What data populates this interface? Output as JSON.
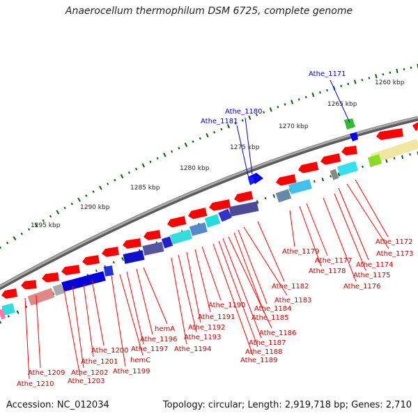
{
  "title": "Anaerocellum thermophilum DSM 6725, complete genome",
  "footer": {
    "accession": "Accession: NC_012034",
    "summary": "Topology: circular; Length: 2,919,718 bp; Genes: 2,710"
  },
  "ticks": [
    {
      "label": "1260 kbp"
    },
    {
      "label": "1265 kbp"
    },
    {
      "label": "1270 kbp"
    },
    {
      "label": "1275 kbp"
    },
    {
      "label": "1280 kbp"
    },
    {
      "label": "1285 kbp"
    },
    {
      "label": "1290 kbp"
    },
    {
      "label": "1295 kbp"
    }
  ],
  "genes_plus": [
    {
      "label": "Athe_1171",
      "color": "#0000cc"
    },
    {
      "label": "Athe_1180",
      "color": "#0000cc"
    },
    {
      "label": "Athe_1181",
      "color": "#0000cc"
    }
  ],
  "genes_minus": [
    {
      "label": "Athe_1172"
    },
    {
      "label": "Athe_1173"
    },
    {
      "label": "Athe_1174"
    },
    {
      "label": "Athe_1175"
    },
    {
      "label": "Athe_1176"
    },
    {
      "label": "Athe_1177"
    },
    {
      "label": "Athe_1178"
    },
    {
      "label": "Athe_1179"
    },
    {
      "label": "Athe_1182"
    },
    {
      "label": "Athe_1183"
    },
    {
      "label": "Athe_1184"
    },
    {
      "label": "Athe_1185"
    },
    {
      "label": "Athe_1186"
    },
    {
      "label": "Athe_1187"
    },
    {
      "label": "Athe_1188"
    },
    {
      "label": "Athe_1189"
    },
    {
      "label": "Athe_1190"
    },
    {
      "label": "Athe_1191"
    },
    {
      "label": "Athe_1192"
    },
    {
      "label": "Athe_1193"
    },
    {
      "label": "Athe_1194"
    },
    {
      "label": "hemA"
    },
    {
      "label": "Athe_1196"
    },
    {
      "label": "Athe_1197"
    },
    {
      "label": "hemC"
    },
    {
      "label": "Athe_1199"
    },
    {
      "label": "Athe_1200"
    },
    {
      "label": "Athe_1201"
    },
    {
      "label": "Athe_1202"
    },
    {
      "label": "Athe_1203"
    },
    {
      "label": "Athe_1209"
    },
    {
      "label": "Athe_1210"
    }
  ],
  "colors": {
    "backbone": "#808080",
    "plus_gene": "#0000cc",
    "minus_gene": "#ff0000",
    "tick": "#006400",
    "label_line": "#ff0000"
  }
}
